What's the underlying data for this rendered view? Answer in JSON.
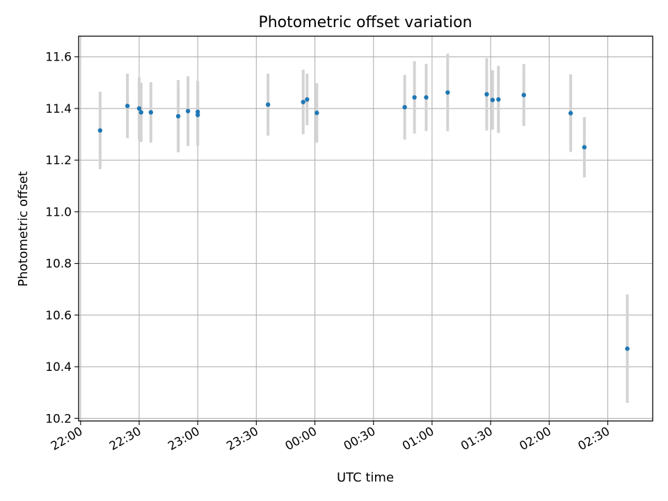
{
  "chart_data": {
    "type": "scatter",
    "title": "Photometric offset variation",
    "xlabel": "UTC time",
    "ylabel": "Photometric offset",
    "x_ticks": [
      "22:00",
      "22:30",
      "23:00",
      "23:30",
      "00:00",
      "00:30",
      "01:00",
      "01:30",
      "02:00",
      "02:30"
    ],
    "y_ticks": [
      "10.2",
      "10.4",
      "10.6",
      "10.8",
      "11.0",
      "11.2",
      "11.4",
      "11.6"
    ],
    "xlim": [
      "21:59",
      "02:53"
    ],
    "ylim": [
      10.19,
      11.68
    ],
    "grid": true,
    "marker_color": "#1f77b4",
    "errorbar_color": "#d3d3d3",
    "points": [
      {
        "x": "22:10",
        "y": 11.315,
        "err": 0.15
      },
      {
        "x": "22:24",
        "y": 11.41,
        "err": 0.125
      },
      {
        "x": "22:30",
        "y": 11.4,
        "err": 0.12
      },
      {
        "x": "22:31",
        "y": 11.385,
        "err": 0.115
      },
      {
        "x": "22:36",
        "y": 11.385,
        "err": 0.117
      },
      {
        "x": "22:50",
        "y": 11.37,
        "err": 0.14
      },
      {
        "x": "22:55",
        "y": 11.39,
        "err": 0.135
      },
      {
        "x": "23:00",
        "y": 11.375,
        "err": 0.12
      },
      {
        "x": "23:00",
        "y": 11.387,
        "err": 0.12
      },
      {
        "x": "23:36",
        "y": 11.415,
        "err": 0.12
      },
      {
        "x": "23:54",
        "y": 11.425,
        "err": 0.125
      },
      {
        "x": "23:56",
        "y": 11.435,
        "err": 0.1
      },
      {
        "x": "00:01",
        "y": 11.383,
        "err": 0.115
      },
      {
        "x": "00:46",
        "y": 11.405,
        "err": 0.125
      },
      {
        "x": "00:51",
        "y": 11.443,
        "err": 0.14
      },
      {
        "x": "00:57",
        "y": 11.443,
        "err": 0.13
      },
      {
        "x": "01:08",
        "y": 11.462,
        "err": 0.15
      },
      {
        "x": "01:28",
        "y": 11.455,
        "err": 0.14
      },
      {
        "x": "01:31",
        "y": 11.433,
        "err": 0.115
      },
      {
        "x": "01:34",
        "y": 11.435,
        "err": 0.13
      },
      {
        "x": "01:47",
        "y": 11.452,
        "err": 0.12
      },
      {
        "x": "02:11",
        "y": 11.382,
        "err": 0.15
      },
      {
        "x": "02:18",
        "y": 11.25,
        "err": 0.117
      },
      {
        "x": "02:40",
        "y": 10.47,
        "err": 0.21
      }
    ]
  }
}
